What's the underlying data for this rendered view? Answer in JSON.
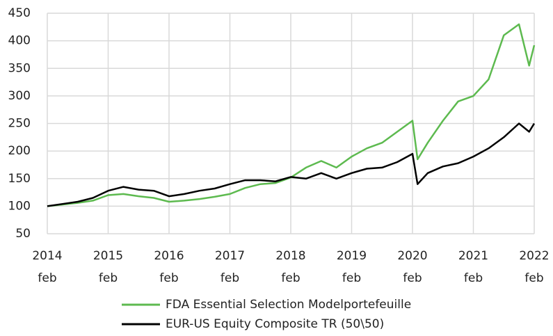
{
  "chart_data": {
    "type": "line",
    "x": [
      "2014-02",
      "2014-05",
      "2014-08",
      "2014-11",
      "2015-02",
      "2015-05",
      "2015-08",
      "2015-11",
      "2016-02",
      "2016-05",
      "2016-08",
      "2016-11",
      "2017-02",
      "2017-05",
      "2017-08",
      "2017-11",
      "2018-02",
      "2018-05",
      "2018-08",
      "2018-11",
      "2019-02",
      "2019-05",
      "2019-08",
      "2019-11",
      "2020-02",
      "2020-03",
      "2020-05",
      "2020-08",
      "2020-11",
      "2021-02",
      "2021-05",
      "2021-08",
      "2021-11",
      "2022-01",
      "2022-02"
    ],
    "series": [
      {
        "name": "FDA Essential Selection Modelportefeuille",
        "color": "#5dba4f",
        "values": [
          100,
          103,
          106,
          110,
          120,
          122,
          118,
          115,
          108,
          110,
          113,
          117,
          122,
          133,
          140,
          142,
          152,
          170,
          182,
          170,
          190,
          205,
          215,
          235,
          255,
          185,
          215,
          255,
          290,
          300,
          330,
          410,
          430,
          355,
          392
        ]
      },
      {
        "name": "EUR-US Equity Composite TR (50\\50)",
        "color": "#000000",
        "values": [
          100,
          104,
          108,
          115,
          128,
          135,
          130,
          128,
          118,
          122,
          128,
          132,
          140,
          147,
          147,
          145,
          153,
          150,
          160,
          150,
          160,
          168,
          170,
          180,
          195,
          140,
          160,
          172,
          178,
          190,
          205,
          225,
          250,
          235,
          250
        ]
      }
    ],
    "xticks": [
      {
        "value": "2014-02",
        "label": "2014 feb"
      },
      {
        "value": "2015-02",
        "label": "2015 feb"
      },
      {
        "value": "2016-02",
        "label": "2016 feb"
      },
      {
        "value": "2017-02",
        "label": "2017 feb"
      },
      {
        "value": "2018-02",
        "label": "2018 feb"
      },
      {
        "value": "2019-02",
        "label": "2019 feb"
      },
      {
        "value": "2020-02",
        "label": "2020 feb"
      },
      {
        "value": "2021-02",
        "label": "2021 feb"
      },
      {
        "value": "2022-02",
        "label": "2022 feb"
      }
    ],
    "ylim": [
      50,
      450
    ],
    "yticks": [
      50,
      100,
      150,
      200,
      250,
      300,
      350,
      400,
      450
    ],
    "grid": true,
    "legend": "bottom"
  }
}
